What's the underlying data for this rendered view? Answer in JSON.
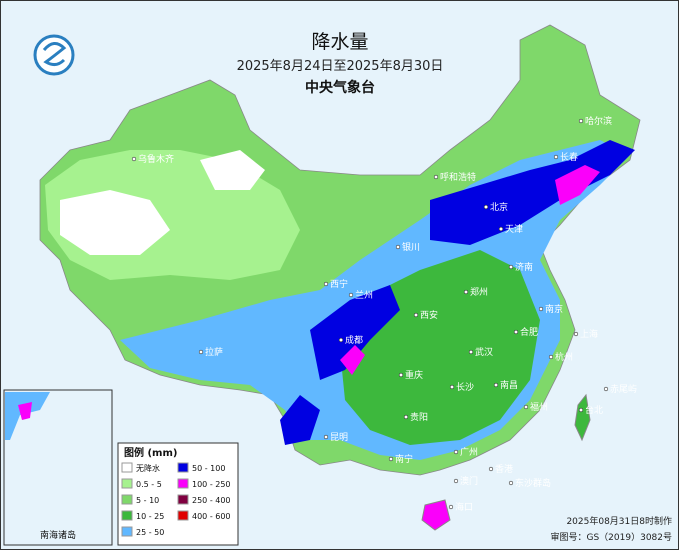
{
  "header": {
    "title": "降水量",
    "period": "2025年8月24日至2025年8月30日",
    "agency": "中央气象台"
  },
  "legend": {
    "title": "图例 (mm)",
    "items": [
      {
        "label": "无降水",
        "color": "#ffffff"
      },
      {
        "label": "0.5 - 5",
        "color": "#a6f28f"
      },
      {
        "label": "5 - 10",
        "color": "#7fd86a"
      },
      {
        "label": "10 - 25",
        "color": "#3db83d"
      },
      {
        "label": "25 - 50",
        "color": "#61b8ff"
      },
      {
        "label": "50 - 100",
        "color": "#0000e1"
      },
      {
        "label": "100 - 250",
        "color": "#fa00fa"
      },
      {
        "label": "250 - 400",
        "color": "#800040"
      },
      {
        "label": "400 - 600",
        "color": "#e00000"
      }
    ]
  },
  "cities": [
    "乌鲁木齐",
    "哈尔滨",
    "长春",
    "呼和浩特",
    "北京",
    "天津",
    "银川",
    "西宁",
    "兰州",
    "济南",
    "郑州",
    "西安",
    "拉萨",
    "成都",
    "合肥",
    "南京",
    "上海",
    "武汉",
    "重庆",
    "杭州",
    "长沙",
    "南昌",
    "贵阳",
    "福州",
    "昆明",
    "台北",
    "南宁",
    "广州",
    "香港",
    "澳门",
    "海口",
    "东沙群岛",
    "赤尾屿"
  ],
  "inset": {
    "label": "南海诸岛"
  },
  "footer": {
    "made": "2025年08月31日8时制作",
    "approval": "审图号：GS（2019）3082号"
  }
}
